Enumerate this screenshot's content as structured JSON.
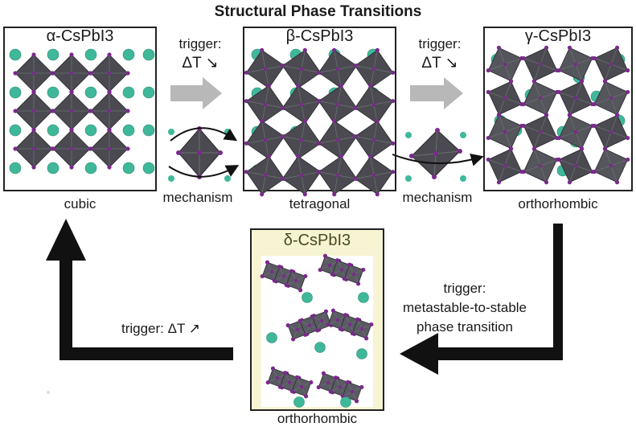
{
  "title": "Structural Phase Transitions",
  "phases": [
    {
      "name": "α-CsPbI3",
      "system": "cubic"
    },
    {
      "name": "β-CsPbI3",
      "system": "tetragonal"
    },
    {
      "name": "γ-CsPbI3",
      "system": "orthorhombic"
    },
    {
      "name": "δ-CsPbI3",
      "system": "orthorhombic"
    }
  ],
  "transitions": {
    "alpha_beta": {
      "label": "trigger:",
      "delta": "ΔT ↘",
      "mechanism": "mechanism"
    },
    "beta_gamma": {
      "label": "trigger:",
      "delta": "ΔT ↘",
      "mechanism": "mechanism"
    },
    "gamma_delta": {
      "line1": "trigger:",
      "line2": "metastable-to-stable",
      "line3": "phase transition"
    },
    "delta_alpha": {
      "label": "trigger: ΔT ↗"
    }
  },
  "colors": {
    "octahedron": "#4a4a50",
    "octahedron_light": "#6e6e76",
    "iodide": "#7a2a8c",
    "cesium": "#3fb89a",
    "arrow_black": "#111111",
    "arrow_gray": "#b8b8b8",
    "delta_panel": "#f6f4d2"
  }
}
